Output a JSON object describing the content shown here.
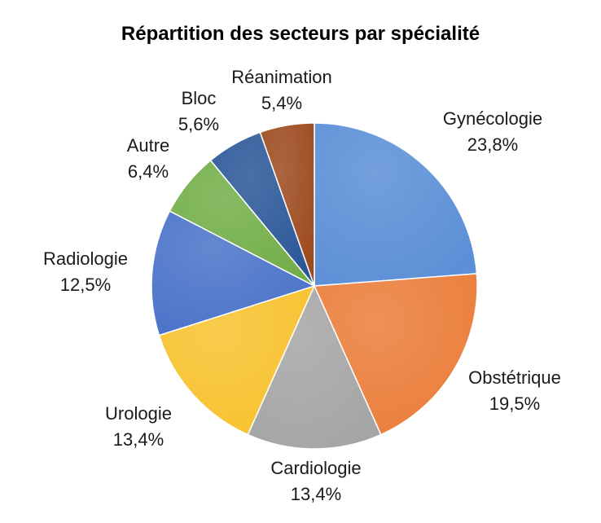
{
  "chart_data": {
    "type": "pie",
    "title": "Répartition des secteurs par spécialité",
    "categories": [
      "Gynécologie",
      "Obstétrique",
      "Cardiologie",
      "Urologie",
      "Radiologie",
      "Autre",
      "Bloc",
      "Réanimation"
    ],
    "values": [
      23.8,
      19.5,
      13.4,
      13.4,
      12.5,
      6.4,
      5.6,
      5.4
    ],
    "value_labels": [
      "23,8%",
      "19,5%",
      "13,4%",
      "13,4%",
      "12,5%",
      "6,4%",
      "5,6%",
      "5,4%"
    ],
    "colors": [
      "#5B8FD6",
      "#EB7D3A",
      "#A5A5A5",
      "#F7C22E",
      "#4A72C9",
      "#72AE48",
      "#2B5798",
      "#9D4A1E"
    ],
    "start_angle": "12 o'clock",
    "direction": "clockwise",
    "legend": "none"
  }
}
